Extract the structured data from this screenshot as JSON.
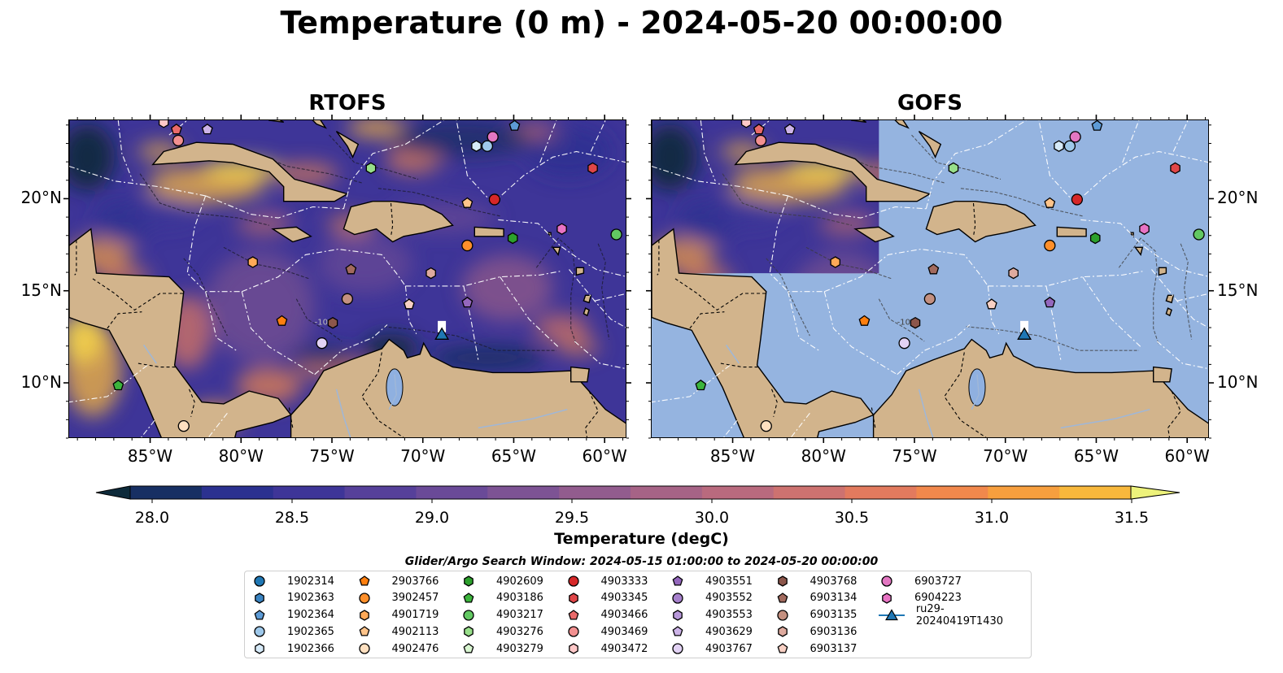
{
  "title": "Temperature (0 m) - 2024-05-20 00:00:00",
  "panels": {
    "left": {
      "title": "RTOFS"
    },
    "right": {
      "title": "GOFS"
    }
  },
  "axes": {
    "x_labels": [
      "85°W",
      "80°W",
      "75°W",
      "70°W",
      "65°W",
      "60°W"
    ],
    "x_values": [
      -85,
      -80,
      -75,
      -70,
      -65,
      -60
    ],
    "y_labels": [
      "10°N",
      "15°N",
      "20°N"
    ],
    "y_values": [
      10,
      15,
      20
    ],
    "lon_range": [
      -89.5,
      -58.8
    ],
    "lat_range": [
      7.0,
      24.3
    ],
    "bathymetry_contour": "-1000"
  },
  "colorbar": {
    "label": "Temperature (degC)",
    "ticks": [
      "28.0",
      "28.5",
      "29.0",
      "29.5",
      "30.0",
      "30.5",
      "31.0",
      "31.5"
    ],
    "min": 28.0,
    "max": 31.5,
    "colors": [
      "#0d2a3a",
      "#172f63",
      "#2b3190",
      "#3e3598",
      "#56409a",
      "#6a4a98",
      "#7d5394",
      "#925c8e",
      "#a66386",
      "#b96a7e",
      "#cd7270",
      "#e27a5e",
      "#f1884c",
      "#f79f3e",
      "#f8b83c",
      "#f5d34a",
      "#edf27b"
    ]
  },
  "legend": {
    "title": "Glider/Argo Search Window: 2024-05-15 01:00:00 to 2024-05-20 00:00:00",
    "items": [
      {
        "label": "1902314",
        "marker": "circle",
        "color": "#1f77b4"
      },
      {
        "label": "1902363",
        "marker": "hexagon",
        "color": "#3a84c2"
      },
      {
        "label": "1902364",
        "marker": "pentagon",
        "color": "#5d9bd6"
      },
      {
        "label": "1902365",
        "marker": "circle",
        "color": "#9ec8ea"
      },
      {
        "label": "1902366",
        "marker": "hexagon",
        "color": "#d6eaf8"
      },
      {
        "label": "2903766",
        "marker": "pentagon",
        "color": "#ff7f0e"
      },
      {
        "label": "3902457",
        "marker": "circle",
        "color": "#ff8f2a"
      },
      {
        "label": "4901719",
        "marker": "hexagon",
        "color": "#ffa957"
      },
      {
        "label": "4902113",
        "marker": "pentagon",
        "color": "#ffc48a"
      },
      {
        "label": "4902476",
        "marker": "circle",
        "color": "#ffe0c0"
      },
      {
        "label": "4902609",
        "marker": "hexagon",
        "color": "#2ca02c"
      },
      {
        "label": "4903186",
        "marker": "pentagon",
        "color": "#3cb43c"
      },
      {
        "label": "4903217",
        "marker": "circle",
        "color": "#62c862"
      },
      {
        "label": "4903276",
        "marker": "hexagon",
        "color": "#98df8a"
      },
      {
        "label": "4903279",
        "marker": "pentagon",
        "color": "#d8f5d0"
      },
      {
        "label": "4903333",
        "marker": "circle",
        "color": "#d62728"
      },
      {
        "label": "4903345",
        "marker": "hexagon",
        "color": "#e04648"
      },
      {
        "label": "4903466",
        "marker": "pentagon",
        "color": "#e96a6a"
      },
      {
        "label": "4903469",
        "marker": "circle",
        "color": "#f29090"
      },
      {
        "label": "4903472",
        "marker": "hexagon",
        "color": "#ffc8c8"
      },
      {
        "label": "4903551",
        "marker": "pentagon",
        "color": "#9467bd"
      },
      {
        "label": "4903552",
        "marker": "circle",
        "color": "#a680cc"
      },
      {
        "label": "4903553",
        "marker": "hexagon",
        "color": "#b898da"
      },
      {
        "label": "4903629",
        "marker": "pentagon",
        "color": "#cdb4e8"
      },
      {
        "label": "4903767",
        "marker": "circle",
        "color": "#e2d2f4"
      },
      {
        "label": "4903768",
        "marker": "hexagon",
        "color": "#8c564b"
      },
      {
        "label": "6903134",
        "marker": "pentagon",
        "color": "#a26a5e"
      },
      {
        "label": "6903135",
        "marker": "circle",
        "color": "#c49080"
      },
      {
        "label": "6903136",
        "marker": "hexagon",
        "color": "#deaa9e"
      },
      {
        "label": "6903137",
        "marker": "pentagon",
        "color": "#f8d0c4"
      },
      {
        "label": "6903727",
        "marker": "circle",
        "color": "#e377c2"
      },
      {
        "label": "6904223",
        "marker": "hexagon",
        "color": "#e873c4"
      },
      {
        "label": "ru29-20240419T1430",
        "marker": "triangle",
        "color": "#1f77b4"
      }
    ]
  },
  "platforms": [
    {
      "id": "6903727",
      "lon": -66.2,
      "lat": 23.4,
      "marker": "circle",
      "color": "#e377c2"
    },
    {
      "id": "1902365",
      "lon": -66.5,
      "lat": 22.9,
      "marker": "circle",
      "color": "#9ec8ea"
    },
    {
      "id": "1902366",
      "lon": -67.1,
      "lat": 22.9,
      "marker": "hexagon",
      "color": "#d6eaf8"
    },
    {
      "id": "1902364",
      "lon": -65.0,
      "lat": 24.0,
      "marker": "pentagon",
      "color": "#5d9bd6"
    },
    {
      "id": "4903466",
      "lon": -83.6,
      "lat": 23.8,
      "marker": "pentagon",
      "color": "#e96a6a"
    },
    {
      "id": "4903472",
      "lon": -84.3,
      "lat": 24.2,
      "marker": "hexagon",
      "color": "#ffc8c8"
    },
    {
      "id": "4903469",
      "lon": -83.5,
      "lat": 23.2,
      "marker": "circle",
      "color": "#f29090"
    },
    {
      "id": "4903629",
      "lon": -81.9,
      "lat": 23.8,
      "marker": "pentagon",
      "color": "#cdb4e8"
    },
    {
      "id": "4903276",
      "lon": -72.9,
      "lat": 21.7,
      "marker": "hexagon",
      "color": "#98df8a"
    },
    {
      "id": "4903345",
      "lon": -60.7,
      "lat": 21.7,
      "marker": "hexagon",
      "color": "#e04648"
    },
    {
      "id": "4902113",
      "lon": -67.6,
      "lat": 19.8,
      "marker": "pentagon",
      "color": "#ffc48a"
    },
    {
      "id": "4903333",
      "lon": -66.1,
      "lat": 20.0,
      "marker": "circle",
      "color": "#d62728"
    },
    {
      "id": "3902457",
      "lon": -67.6,
      "lat": 17.5,
      "marker": "circle",
      "color": "#ff8f2a"
    },
    {
      "id": "4902609",
      "lon": -65.1,
      "lat": 17.9,
      "marker": "hexagon",
      "color": "#2ca02c"
    },
    {
      "id": "6904223",
      "lon": -62.4,
      "lat": 18.4,
      "marker": "hexagon",
      "color": "#e873c4"
    },
    {
      "id": "4903217",
      "lon": -59.4,
      "lat": 18.1,
      "marker": "circle",
      "color": "#62c862"
    },
    {
      "id": "4901719",
      "lon": -79.4,
      "lat": 16.6,
      "marker": "hexagon",
      "color": "#ffa957"
    },
    {
      "id": "6903134",
      "lon": -74.0,
      "lat": 16.2,
      "marker": "pentagon",
      "color": "#a26a5e"
    },
    {
      "id": "6903136",
      "lon": -69.6,
      "lat": 16.0,
      "marker": "hexagon",
      "color": "#deaa9e"
    },
    {
      "id": "6903135",
      "lon": -74.2,
      "lat": 14.6,
      "marker": "circle",
      "color": "#c49080"
    },
    {
      "id": "6903137",
      "lon": -70.8,
      "lat": 14.3,
      "marker": "pentagon",
      "color": "#f8d0c4"
    },
    {
      "id": "4903551",
      "lon": -67.6,
      "lat": 14.4,
      "marker": "pentagon",
      "color": "#9467bd"
    },
    {
      "id": "2903766",
      "lon": -77.8,
      "lat": 13.4,
      "marker": "pentagon",
      "color": "#ff7f0e"
    },
    {
      "id": "4903768",
      "lon": -75.0,
      "lat": 13.3,
      "marker": "hexagon",
      "color": "#8c564b"
    },
    {
      "id": "4903767",
      "lon": -75.6,
      "lat": 12.2,
      "marker": "circle",
      "color": "#e2d2f4"
    },
    {
      "id": "4903186",
      "lon": -86.8,
      "lat": 9.9,
      "marker": "pentagon",
      "color": "#3cb43c"
    },
    {
      "id": "4902476",
      "lon": -83.2,
      "lat": 7.7,
      "marker": "circle",
      "color": "#ffe0c0"
    },
    {
      "id": "ru29-20240419T1430",
      "lon": -69.0,
      "lat": 12.7,
      "marker": "triangle",
      "color": "#1f77b4"
    }
  ],
  "colors": {
    "land": "#d2b48c",
    "ocean_nodata": "#95b4e0",
    "boundaries": "#ffffff"
  }
}
